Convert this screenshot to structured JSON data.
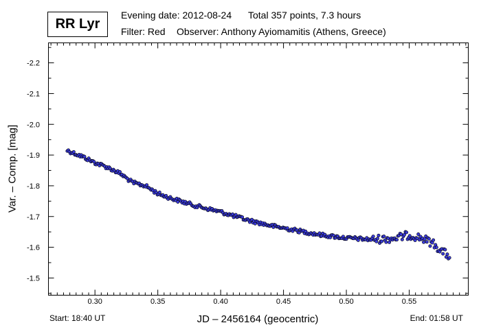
{
  "header": {
    "star": "RR Lyr",
    "date": "Evening date: 2012-08-24",
    "total": "Total 357 points, 7.3 hours",
    "filter": "Filter: Red",
    "observer": "Observer: Anthony Ayiomamitis (Athens, Greece)"
  },
  "footer": {
    "start": "Start: 18:40 UT",
    "end": "End: 01:58 UT"
  },
  "chart_data": {
    "type": "scatter",
    "xlabel": "JD – 2456164  (geocentric)",
    "ylabel": "Var. – Comp. [mag]",
    "xlim": [
      0.263,
      0.597
    ],
    "ylim": [
      -2.265,
      -1.444
    ],
    "y_inverted": true,
    "x_ticks": [
      "0.30",
      "0.35",
      "0.40",
      "0.45",
      "0.50",
      "0.55"
    ],
    "y_ticks": [
      "-2.2",
      "-2.1",
      "-2.0",
      "-1.9",
      "-1.8",
      "-1.7",
      "-1.6",
      "-1.5"
    ],
    "point_color": "#3a3adc",
    "point_outline": "#000000",
    "n_points": 357,
    "anchors": [
      [
        0.278,
        -1.915
      ],
      [
        0.29,
        -1.895
      ],
      [
        0.3,
        -1.875
      ],
      [
        0.31,
        -1.86
      ],
      [
        0.32,
        -1.84
      ],
      [
        0.33,
        -1.81
      ],
      [
        0.34,
        -1.8
      ],
      [
        0.35,
        -1.775
      ],
      [
        0.36,
        -1.76
      ],
      [
        0.38,
        -1.735
      ],
      [
        0.4,
        -1.715
      ],
      [
        0.42,
        -1.69
      ],
      [
        0.44,
        -1.67
      ],
      [
        0.46,
        -1.655
      ],
      [
        0.48,
        -1.64
      ],
      [
        0.5,
        -1.63
      ],
      [
        0.52,
        -1.625
      ],
      [
        0.54,
        -1.63
      ],
      [
        0.55,
        -1.64
      ],
      [
        0.56,
        -1.63
      ],
      [
        0.57,
        -1.61
      ],
      [
        0.575,
        -1.59
      ],
      [
        0.582,
        -1.57
      ]
    ]
  }
}
